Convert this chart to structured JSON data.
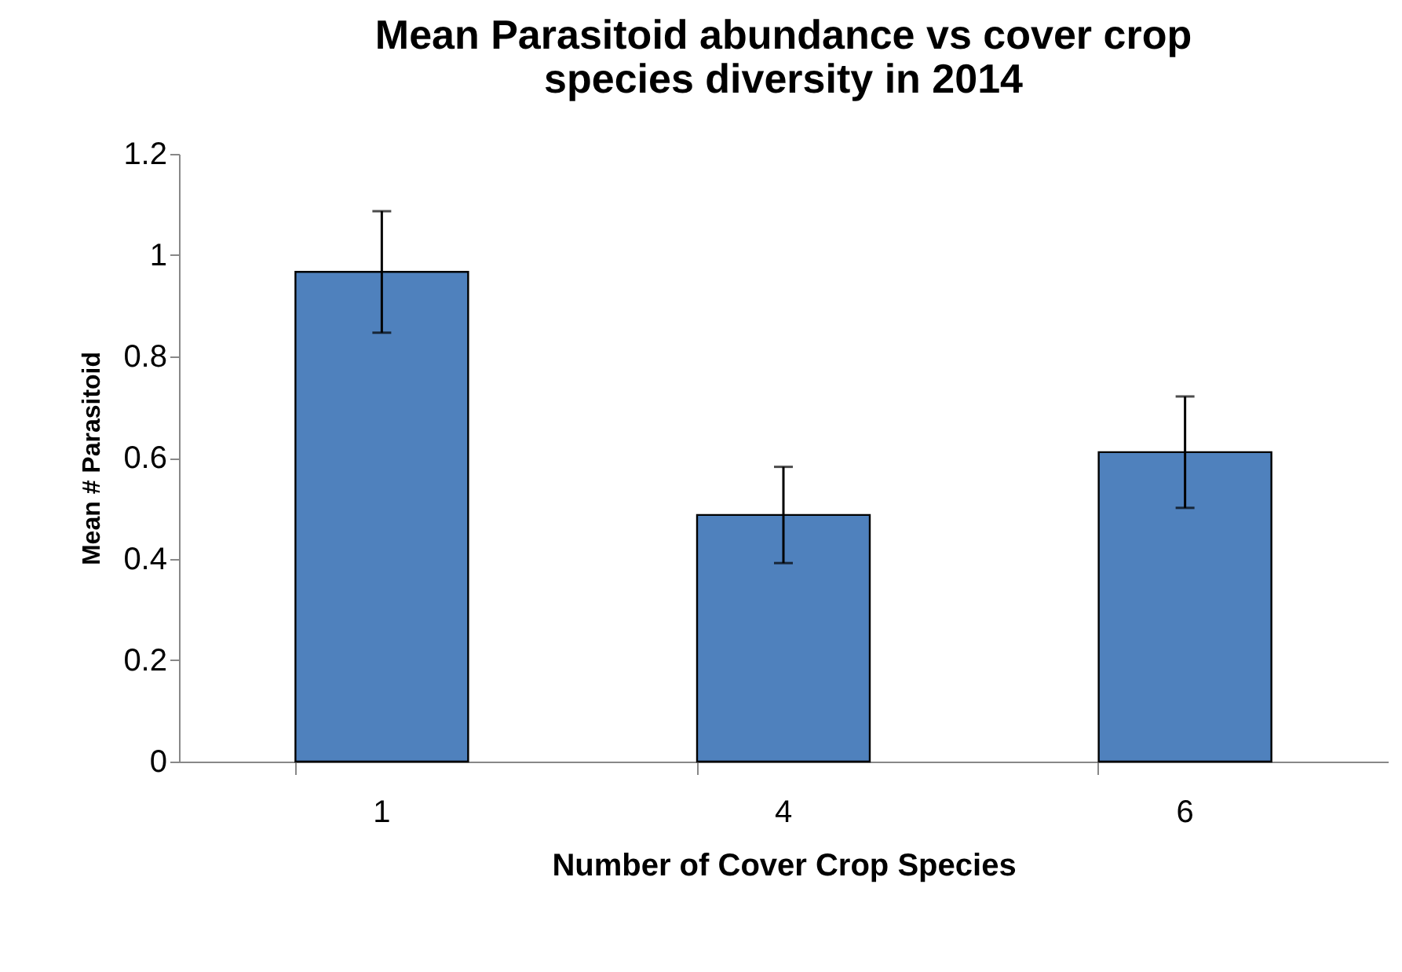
{
  "chart_data": {
    "type": "bar",
    "title": "Mean  Parasitoid abundance vs cover crop species diversity in 2014",
    "xlabel": "Number of  Cover Crop Species",
    "ylabel": "Mean # Parasitoid",
    "categories": [
      "1",
      "4",
      "6"
    ],
    "values": [
      0.967,
      0.487,
      0.611
    ],
    "errors": [
      0.12,
      0.095,
      0.11
    ],
    "color": "#4f81bd",
    "ylim": [
      0,
      1.2
    ],
    "yticks": [
      0,
      0.2,
      0.4,
      0.6,
      0.8,
      1,
      1.2
    ],
    "grid": false
  }
}
